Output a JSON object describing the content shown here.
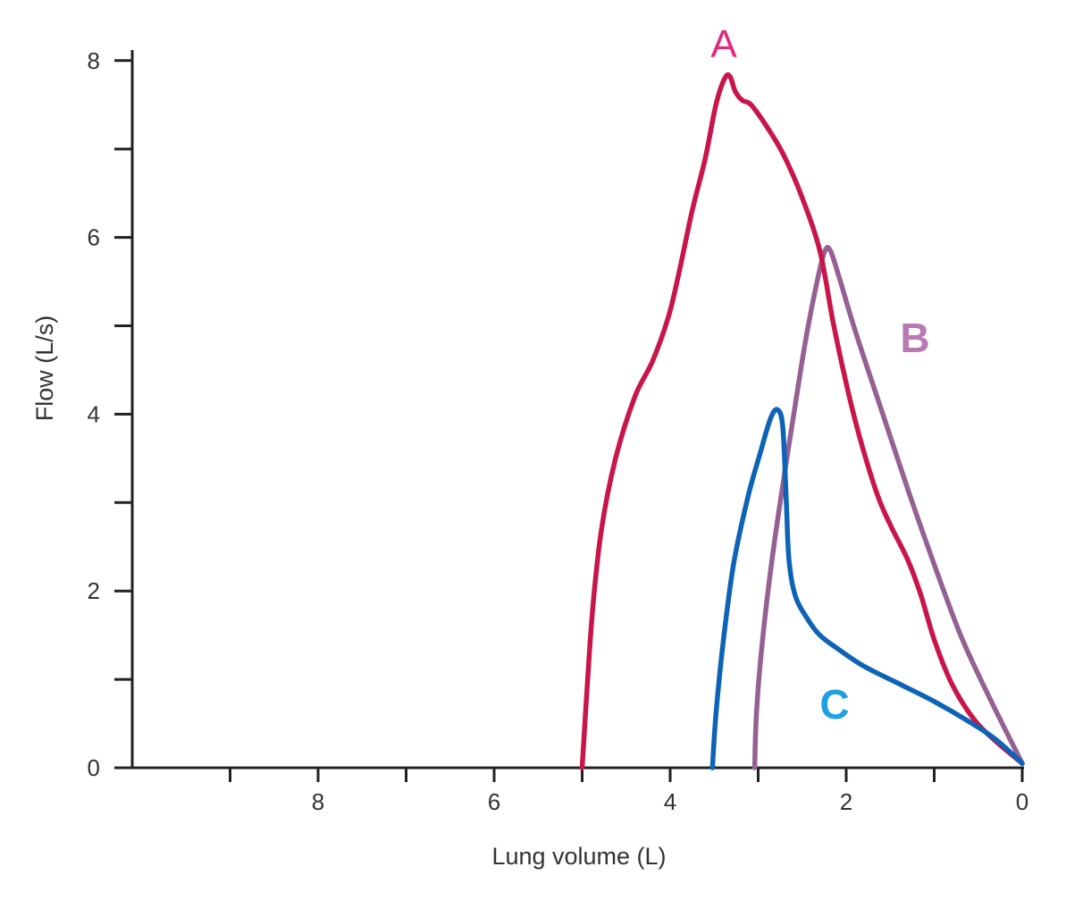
{
  "chart_data": {
    "type": "line",
    "xlabel": "Lung volume (L)",
    "ylabel": "Flow (L/s)",
    "xlim": [
      10,
      0
    ],
    "ylim": [
      0,
      8
    ],
    "x_reversed": true,
    "x_tick_labels": [
      "8",
      "6",
      "4",
      "2",
      "0"
    ],
    "x_tick_values": [
      8,
      6,
      4,
      2,
      0
    ],
    "x_minor_ticks": [
      9,
      7,
      5,
      3,
      1
    ],
    "y_tick_labels": [
      "0",
      "2",
      "4",
      "6",
      "8"
    ],
    "y_tick_values": [
      0,
      2,
      4,
      6,
      8
    ],
    "y_minor_ticks": [
      1,
      3,
      5,
      7
    ],
    "grid": false,
    "legend": "none",
    "series": [
      {
        "name": "A",
        "color": "#c8154a",
        "label_color": "#e0297f",
        "points": [
          [
            5.0,
            0
          ],
          [
            4.95,
            0.8
          ],
          [
            4.88,
            1.8
          ],
          [
            4.78,
            2.7
          ],
          [
            4.62,
            3.5
          ],
          [
            4.4,
            4.2
          ],
          [
            4.2,
            4.6
          ],
          [
            4.02,
            5.1
          ],
          [
            3.9,
            5.6
          ],
          [
            3.75,
            6.3
          ],
          [
            3.6,
            6.9
          ],
          [
            3.48,
            7.5
          ],
          [
            3.38,
            7.8
          ],
          [
            3.32,
            7.82
          ],
          [
            3.26,
            7.65
          ],
          [
            3.18,
            7.55
          ],
          [
            3.08,
            7.5
          ],
          [
            2.9,
            7.25
          ],
          [
            2.72,
            6.95
          ],
          [
            2.52,
            6.5
          ],
          [
            2.3,
            5.85
          ],
          [
            2.15,
            5.05
          ],
          [
            2.0,
            4.35
          ],
          [
            1.85,
            3.75
          ],
          [
            1.65,
            3.1
          ],
          [
            1.5,
            2.75
          ],
          [
            1.3,
            2.35
          ],
          [
            1.15,
            1.95
          ],
          [
            1.0,
            1.45
          ],
          [
            0.8,
            0.95
          ],
          [
            0.55,
            0.55
          ],
          [
            0.3,
            0.3
          ],
          [
            0.0,
            0.05
          ]
        ]
      },
      {
        "name": "B",
        "color": "#956093",
        "label_color": "#b67ab4",
        "points": [
          [
            3.04,
            0
          ],
          [
            3.02,
            0.6
          ],
          [
            2.96,
            1.35
          ],
          [
            2.85,
            2.3
          ],
          [
            2.72,
            3.2
          ],
          [
            2.58,
            4.1
          ],
          [
            2.45,
            4.9
          ],
          [
            2.32,
            5.55
          ],
          [
            2.24,
            5.85
          ],
          [
            2.18,
            5.85
          ],
          [
            2.08,
            5.55
          ],
          [
            1.9,
            4.95
          ],
          [
            1.6,
            4.05
          ],
          [
            1.3,
            3.15
          ],
          [
            1.0,
            2.3
          ],
          [
            0.7,
            1.5
          ],
          [
            0.4,
            0.85
          ],
          [
            0.0,
            0.05
          ]
        ]
      },
      {
        "name": "C",
        "color": "#0d63b5",
        "label_color": "#1da0e4",
        "points": [
          [
            3.52,
            0
          ],
          [
            3.48,
            0.6
          ],
          [
            3.4,
            1.4
          ],
          [
            3.28,
            2.3
          ],
          [
            3.12,
            3.05
          ],
          [
            2.98,
            3.55
          ],
          [
            2.86,
            3.95
          ],
          [
            2.78,
            4.05
          ],
          [
            2.72,
            3.85
          ],
          [
            2.68,
            3.0
          ],
          [
            2.65,
            2.35
          ],
          [
            2.58,
            1.95
          ],
          [
            2.45,
            1.7
          ],
          [
            2.3,
            1.5
          ],
          [
            2.1,
            1.35
          ],
          [
            1.8,
            1.15
          ],
          [
            1.4,
            0.95
          ],
          [
            1.0,
            0.75
          ],
          [
            0.6,
            0.52
          ],
          [
            0.3,
            0.32
          ],
          [
            0.0,
            0.05
          ]
        ]
      }
    ]
  }
}
